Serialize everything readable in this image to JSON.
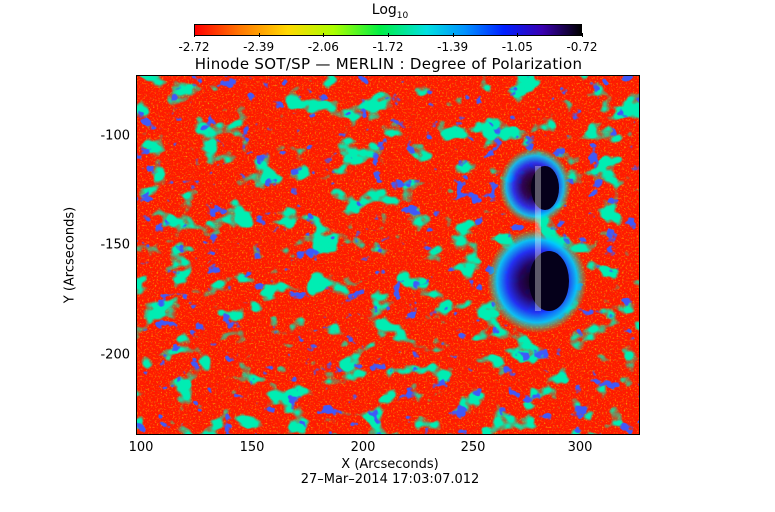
{
  "colorbar": {
    "title": "Log",
    "title_subscript": "10",
    "ticks": [
      "-2.72",
      "-2.39",
      "-2.06",
      "-1.72",
      "-1.39",
      "-1.05",
      "-0.72"
    ],
    "colors": [
      "#ff0000",
      "#ff7a00",
      "#ffd800",
      "#aaff00",
      "#00ee44",
      "#00e0e0",
      "#0090ff",
      "#0020ff",
      "#3a00b0",
      "#000000"
    ]
  },
  "title": "Hinode SOT/SP — MERLIN : Degree of Polarization",
  "axes": {
    "x_label": "X (Arcseconds)",
    "y_label": "Y (Arcseconds)",
    "x_ticks": [
      "100",
      "150",
      "200",
      "250",
      "300"
    ],
    "y_ticks": [
      "-100",
      "-150",
      "-200"
    ]
  },
  "timestamp": "27–Mar–2014 17:03:07.012"
}
